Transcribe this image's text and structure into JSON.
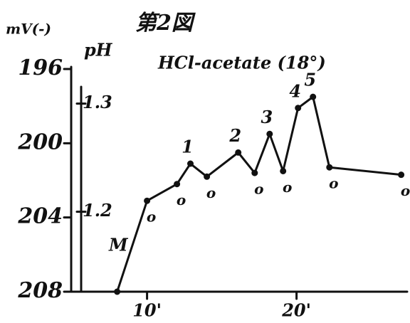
{
  "chart_data": {
    "type": "line",
    "title": "第2図",
    "subtitle": "HCl-acetate (18°)",
    "y_label": "mV(-)",
    "y2_label": "pH",
    "x": [
      8.0,
      10.0,
      12.0,
      12.9,
      14.0,
      16.1,
      17.2,
      18.2,
      19.1,
      20.1,
      21.1,
      22.2,
      27.0
    ],
    "series": [
      {
        "color": "#111111",
        "values": [
          208,
          203.1,
          202.2,
          201.1,
          201.8,
          200.5,
          201.6,
          199.5,
          201.5,
          198.1,
          197.5,
          201.3,
          201.7
        ],
        "point_labels": [
          "M",
          "o",
          "o",
          "1",
          "o",
          "2",
          "o",
          "3",
          "o",
          "4",
          "5",
          "o",
          "o"
        ]
      }
    ],
    "xlim": [
      5.4,
      27.4
    ],
    "xticks": [
      {
        "value": 10,
        "label": "10'"
      },
      {
        "value": 20,
        "label": "20'"
      }
    ],
    "ylim": [
      208,
      196
    ],
    "yticks": [
      196,
      200,
      204,
      208
    ],
    "y2lim": [
      1.126,
      1.332
    ],
    "y2ticks": [
      1.3,
      1.2
    ]
  }
}
